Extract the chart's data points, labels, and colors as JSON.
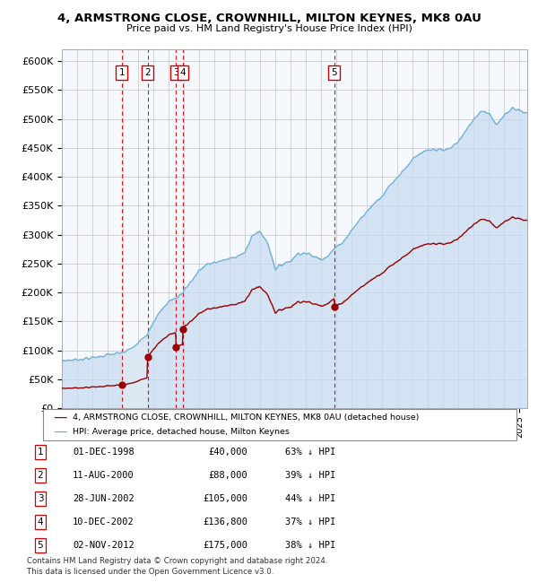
{
  "title1": "4, ARMSTRONG CLOSE, CROWNHILL, MILTON KEYNES, MK8 0AU",
  "title2": "Price paid vs. HM Land Registry's House Price Index (HPI)",
  "legend_label_red": "4, ARMSTRONG CLOSE, CROWNHILL, MILTON KEYNES, MK8 0AU (detached house)",
  "legend_label_blue": "HPI: Average price, detached house, Milton Keynes",
  "footer1": "Contains HM Land Registry data © Crown copyright and database right 2024.",
  "footer2": "This data is licensed under the Open Government Licence v3.0.",
  "ylim": [
    0,
    620000
  ],
  "yticks": [
    0,
    50000,
    100000,
    150000,
    200000,
    250000,
    300000,
    350000,
    400000,
    450000,
    500000,
    550000,
    600000
  ],
  "ytick_labels": [
    "£0",
    "£50K",
    "£100K",
    "£150K",
    "£200K",
    "£250K",
    "£300K",
    "£350K",
    "£400K",
    "£450K",
    "£500K",
    "£550K",
    "£600K"
  ],
  "sales": [
    {
      "num": 1,
      "date_x": 1998.917,
      "price": 40000,
      "pct": "63%",
      "date_str": "01-DEC-1998",
      "price_str": "£40,000"
    },
    {
      "num": 2,
      "date_x": 2000.617,
      "price": 88000,
      "pct": "39%",
      "date_str": "11-AUG-2000",
      "price_str": "£88,000"
    },
    {
      "num": 3,
      "date_x": 2002.49,
      "price": 105000,
      "pct": "44%",
      "date_str": "28-JUN-2002",
      "price_str": "£105,000"
    },
    {
      "num": 4,
      "date_x": 2002.94,
      "price": 136800,
      "pct": "37%",
      "date_str": "10-DEC-2002",
      "price_str": "£136,800"
    },
    {
      "num": 5,
      "date_x": 2012.836,
      "price": 175000,
      "pct": "38%",
      "date_str": "02-NOV-2012",
      "price_str": "£175,000"
    }
  ],
  "hpi_color": "#6baed6",
  "hpi_fill_color": "#c6dbef",
  "highlight_fill_color": "#dce9f5",
  "sales_color": "#990000",
  "vline_color": "#cc0000",
  "grid_color": "#cccccc",
  "bg_color": "#ffffff",
  "plot_bg_color": "#f5f8fd",
  "xmin": 1995.0,
  "xmax": 2025.5
}
